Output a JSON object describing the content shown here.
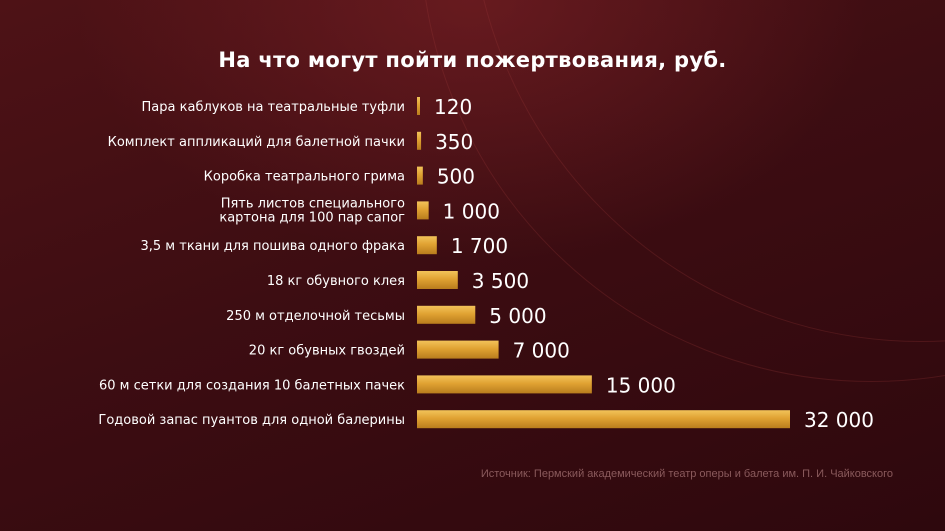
{
  "chart_data": {
    "type": "bar",
    "orientation": "horizontal",
    "title": "На что могут пойти пожертвования, руб.",
    "categories": [
      "Пара каблуков на театральные туфли",
      "Комплект аппликаций для балетной пачки",
      "Коробка театрального грима",
      "Пять листов специального\nкартона для 100 пар сапог",
      "3,5 м ткани для пошива одного фрака",
      "18 кг обувного клея",
      "250 м отделочной тесьмы",
      "20 кг обувных гвоздей",
      "60 м сетки для создания 10 балетных пачек",
      "Годовой запас пуантов для одной балерины"
    ],
    "values": [
      120,
      350,
      500,
      1000,
      1700,
      3500,
      5000,
      7000,
      15000,
      32000
    ],
    "value_labels": [
      "120",
      "350",
      "500",
      "1 000",
      "1 700",
      "3 500",
      "5 000",
      "7 000",
      "15 000",
      "32 000"
    ],
    "xlim": [
      0,
      32000
    ],
    "grid": false,
    "legend": "none",
    "colors": {
      "bar": "#e0a232",
      "bar_light": "#f2c35a",
      "bar_dark": "#b97d1d",
      "label": "#ffffff",
      "background": "#3d0d12",
      "source": "#8a5a5c"
    }
  },
  "source": "Источник: Пермский академический театр оперы и балета им. П. И. Чайковского"
}
